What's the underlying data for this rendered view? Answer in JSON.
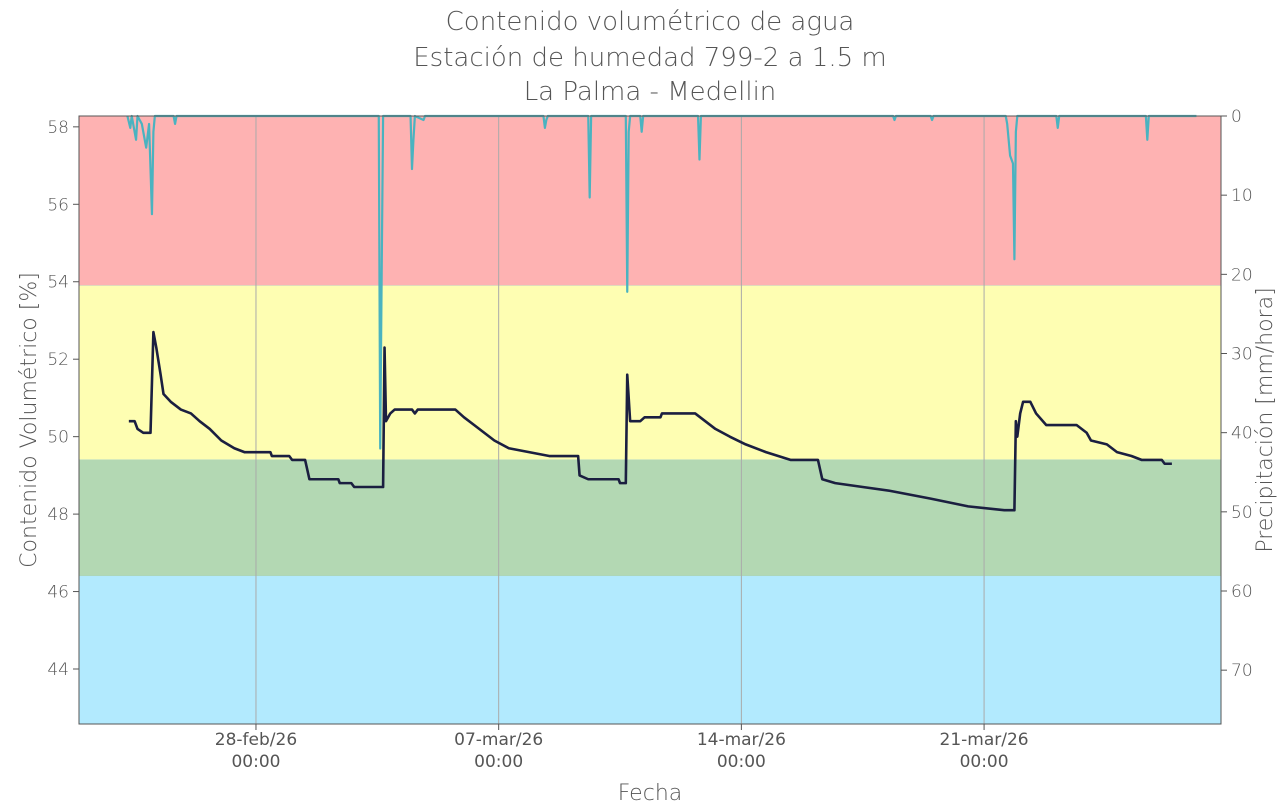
{
  "chart_data": {
    "type": "line",
    "title": "Contenido volumétrico de agua",
    "subtitle": [
      "Estación de humedad 799-2 a 1.5 m",
      "La Palma - Medellin"
    ],
    "xlabel": "Fecha",
    "ylabel": "Contenido Volumétrico [%]",
    "y2label": "Precipitación [mm/hora]",
    "xlim": [
      "2026-02-22T21:30",
      "2026-03-27T20:00"
    ],
    "xticks": [
      {
        "value": "2026-02-28T00:00",
        "label": "28-feb/26\n00:00"
      },
      {
        "value": "2026-03-07T00:00",
        "label": "07-mar/26\n00:00"
      },
      {
        "value": "2026-03-14T00:00",
        "label": "14-mar/26\n00:00"
      },
      {
        "value": "2026-03-21T00:00",
        "label": "21-mar/26\n00:00"
      }
    ],
    "ylim": [
      42.58,
      58.28
    ],
    "yticks": [
      44,
      46,
      48,
      50,
      52,
      54,
      56,
      58
    ],
    "y2lim": [
      76.8,
      0
    ],
    "y2ticks": [
      0,
      10,
      20,
      30,
      40,
      50,
      60,
      70
    ],
    "grid": "x",
    "bands": [
      {
        "from": 53.9,
        "to": 58.28,
        "color": "#feb2b2"
      },
      {
        "from": 49.4,
        "to": 53.9,
        "color": "#fefeb2"
      },
      {
        "from": 46.4,
        "to": 49.4,
        "color": "#b3d8b3"
      },
      {
        "from": 42.58,
        "to": 46.4,
        "color": "#b2eafe"
      }
    ],
    "series": [
      {
        "name": "Precipitación",
        "color": "#4ab3c0",
        "axis": "y2",
        "x": [
          "2026-02-24T07:00",
          "2026-02-24T09:00",
          "2026-02-24T10:00",
          "2026-02-24T13:00",
          "2026-02-24T14:00",
          "2026-02-24T17:00",
          "2026-02-24T19:00",
          "2026-02-24T20:00",
          "2026-02-24T22:00",
          "2026-02-25T00:00",
          "2026-02-25T01:00",
          "2026-02-25T02:00",
          "2026-02-25T15:00",
          "2026-02-25T16:00",
          "2026-02-25T17:00",
          "2026-03-03T13:00",
          "2026-03-03T14:00",
          "2026-03-03T15:00",
          "2026-03-03T16:00",
          "2026-03-04T11:00",
          "2026-03-04T12:00",
          "2026-03-04T13:00",
          "2026-03-04T14:00",
          "2026-03-04T20:00",
          "2026-03-04T21:00",
          "2026-03-08T07:00",
          "2026-03-08T08:00",
          "2026-03-08T09:00",
          "2026-03-08T10:00",
          "2026-03-09T14:00",
          "2026-03-09T15:00",
          "2026-03-09T16:00",
          "2026-03-10T16:00",
          "2026-03-10T17:00",
          "2026-03-10T18:00",
          "2026-03-10T19:00",
          "2026-03-11T02:00",
          "2026-03-11T03:00",
          "2026-03-11T04:00",
          "2026-03-12T18:00",
          "2026-03-12T19:00",
          "2026-03-12T20:00",
          "2026-03-18T09:00",
          "2026-03-18T10:00",
          "2026-03-18T11:00",
          "2026-03-19T11:00",
          "2026-03-19T12:00",
          "2026-03-19T13:00",
          "2026-03-21T15:00",
          "2026-03-21T16:00",
          "2026-03-21T18:00",
          "2026-03-21T20:00",
          "2026-03-21T21:00",
          "2026-03-21T22:00",
          "2026-03-21T23:00",
          "2026-03-23T02:00",
          "2026-03-23T03:00",
          "2026-03-23T04:00",
          "2026-03-25T16:00",
          "2026-03-25T17:00",
          "2026-03-25T18:00",
          "2026-03-27T03:00"
        ],
        "values": [
          0,
          1.5,
          0,
          3,
          0,
          1,
          3,
          4,
          1,
          12.4,
          2,
          0,
          0,
          1,
          0,
          0,
          42,
          20,
          0,
          0,
          6.7,
          3,
          0,
          0.5,
          0,
          0,
          1.5,
          0.5,
          0,
          0,
          10.3,
          0,
          0,
          22.2,
          2,
          0,
          0,
          2,
          0,
          0,
          5.5,
          0,
          0,
          0.5,
          0,
          0,
          0.5,
          0,
          0,
          1,
          5,
          6,
          18.1,
          2,
          0,
          0,
          1.5,
          0,
          0,
          3,
          0,
          0
        ]
      },
      {
        "name": "Contenido volumétrico",
        "color": "#1b1f40",
        "axis": "y",
        "x": [
          "2026-02-24T08:00",
          "2026-02-24T12:00",
          "2026-02-24T14:00",
          "2026-02-24T18:00",
          "2026-02-24T23:00",
          "2026-02-25T01:00",
          "2026-02-25T03:00",
          "2026-02-25T06:00",
          "2026-02-25T08:00",
          "2026-02-25T13:00",
          "2026-02-25T20:00",
          "2026-02-26T03:00",
          "2026-02-26T09:00",
          "2026-02-26T16:00",
          "2026-02-27T00:00",
          "2026-02-27T09:00",
          "2026-02-27T16:00",
          "2026-02-28T10:00",
          "2026-02-28T11:00",
          "2026-02-28T23:00",
          "2026-03-01T01:00",
          "2026-03-01T10:00",
          "2026-03-01T13:00",
          "2026-03-02T09:00",
          "2026-03-02T10:00",
          "2026-03-02T18:00",
          "2026-03-02T20:00",
          "2026-03-03T16:00",
          "2026-03-03T17:00",
          "2026-03-03T18:00",
          "2026-03-03T21:00",
          "2026-03-04T00:00",
          "2026-03-04T12:00",
          "2026-03-04T14:00",
          "2026-03-04T16:00",
          "2026-03-05T18:00",
          "2026-03-06T00:00",
          "2026-03-06T07:00",
          "2026-03-06T14:00",
          "2026-03-06T21:00",
          "2026-03-07T07:00",
          "2026-03-07T21:00",
          "2026-03-08T11:00",
          "2026-03-09T07:00",
          "2026-03-09T08:00",
          "2026-03-09T14:00",
          "2026-03-10T11:00",
          "2026-03-10T12:00",
          "2026-03-10T16:00",
          "2026-03-10T17:00",
          "2026-03-10T19:00",
          "2026-03-11T02:00",
          "2026-03-11T05:00",
          "2026-03-11T16:00",
          "2026-03-11T17:00",
          "2026-03-12T16:00",
          "2026-03-12T23:00",
          "2026-03-13T06:00",
          "2026-03-13T16:00",
          "2026-03-14T03:00",
          "2026-03-14T17:00",
          "2026-03-15T10:00",
          "2026-03-16T05:00",
          "2026-03-16T08:00",
          "2026-03-16T17:00",
          "2026-03-17T12:00",
          "2026-03-18T07:00",
          "2026-03-18T21:00",
          "2026-03-19T11:00",
          "2026-03-20T13:00",
          "2026-03-21T14:00",
          "2026-03-21T21:00",
          "2026-03-21T22:00",
          "2026-03-21T23:00",
          "2026-03-22T01:00",
          "2026-03-22T03:00",
          "2026-03-22T08:00",
          "2026-03-22T12:00",
          "2026-03-22T19:00",
          "2026-03-23T16:00",
          "2026-03-23T23:00",
          "2026-03-24T02:00",
          "2026-03-24T13:00",
          "2026-03-24T20:00",
          "2026-03-25T06:00",
          "2026-03-25T13:00",
          "2026-03-26T03:00",
          "2026-03-26T05:00",
          "2026-03-26T10:00"
        ],
        "values": [
          50.4,
          50.4,
          50.2,
          50.1,
          50.1,
          52.7,
          52.3,
          51.6,
          51.1,
          50.9,
          50.7,
          50.6,
          50.4,
          50.2,
          49.9,
          49.7,
          49.6,
          49.6,
          49.5,
          49.5,
          49.4,
          49.4,
          48.9,
          48.9,
          48.8,
          48.8,
          48.7,
          48.7,
          52.3,
          50.4,
          50.6,
          50.7,
          50.7,
          50.6,
          50.7,
          50.7,
          50.5,
          50.3,
          50.1,
          49.9,
          49.7,
          49.6,
          49.5,
          49.5,
          49.0,
          48.9,
          48.9,
          48.8,
          48.8,
          51.6,
          50.4,
          50.4,
          50.5,
          50.5,
          50.6,
          50.6,
          50.4,
          50.2,
          50.0,
          49.8,
          49.6,
          49.4,
          49.4,
          48.9,
          48.8,
          48.7,
          48.6,
          48.5,
          48.4,
          48.2,
          48.1,
          48.1,
          50.4,
          50.0,
          50.6,
          50.9,
          50.9,
          50.6,
          50.3,
          50.3,
          50.1,
          49.9,
          49.8,
          49.6,
          49.5,
          49.4,
          49.4,
          49.3,
          49.3
        ]
      }
    ]
  }
}
